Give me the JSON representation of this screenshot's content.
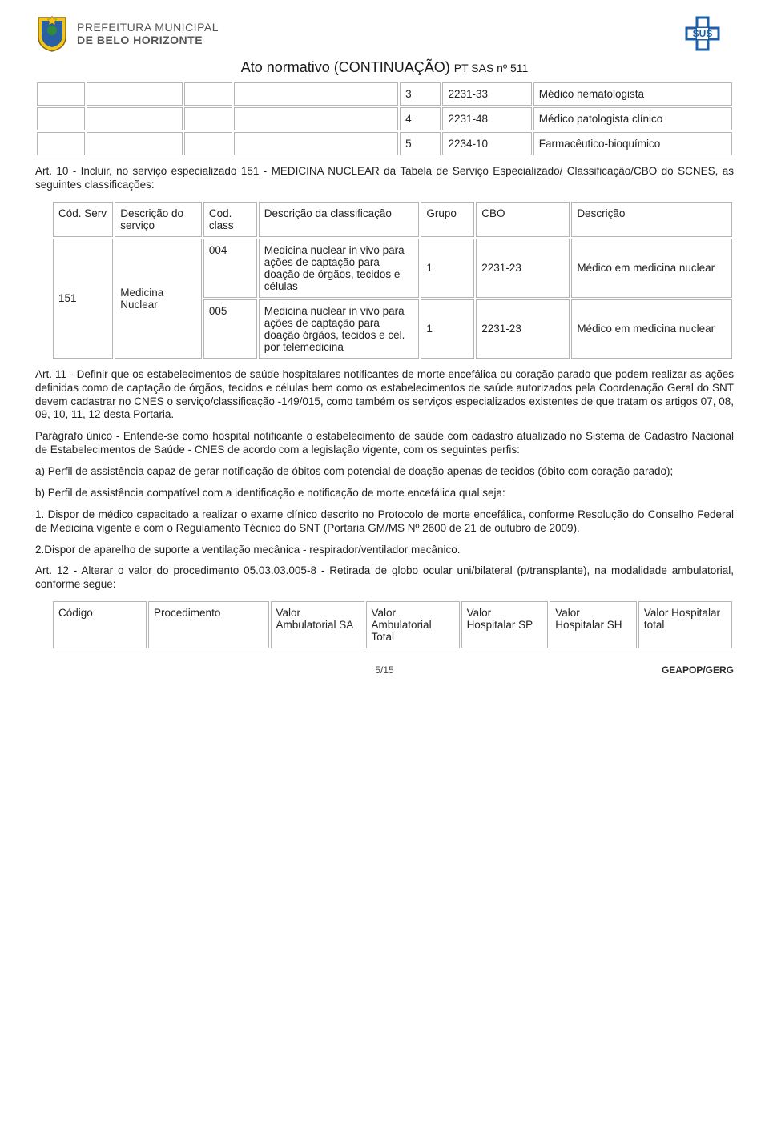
{
  "header": {
    "muni_line1": "PREFEITURA MUNICIPAL",
    "muni_line2": "DE BELO HORIZONTE",
    "sus_text": "SUS"
  },
  "title": {
    "main": "Ato normativo (CONTINUAÇÃO)",
    "suffix": "PT SAS nº 511"
  },
  "table1": {
    "rows": [
      {
        "col5": "3",
        "col6": "2231-33",
        "col7": "Médico hematologista"
      },
      {
        "col5": "4",
        "col6": "2231-48",
        "col7": "Médico patologista clínico"
      },
      {
        "col5": "5",
        "col6": "2234-10",
        "col7": "Farmacêutico-bioquímico"
      }
    ]
  },
  "art10": "Art. 10 - Incluir, no serviço especializado 151 - MEDICINA NUCLEAR da Tabela de Serviço Especializado/ Classificação/CBO do SCNES, as seguintes classificações:",
  "table2": {
    "headers": [
      "Cód. Serv",
      "Descrição do serviço",
      "Cod. class",
      "Descrição da classificação",
      "Grupo",
      "CBO",
      "Descrição"
    ],
    "merged": {
      "c1": "151",
      "c2": "Medicina Nuclear"
    },
    "rows": [
      {
        "c3": "004",
        "c4": "Medicina nuclear in vivo para ações de captação para doação de órgãos, tecidos e células",
        "c5": "1",
        "c6": "2231-23",
        "c7": "Médico em medicina nuclear"
      },
      {
        "c3": "005",
        "c4": "Medicina nuclear in vivo para ações de captação para doação órgãos, tecidos e cel. por telemedicina",
        "c5": "1",
        "c6": "2231-23",
        "c7": "Médico em medicina nuclear"
      }
    ]
  },
  "art11": "Art. 11 - Definir que os estabelecimentos de saúde hospitalares notificantes de morte encefálica ou coração parado que podem realizar as ações definidas como de captação de órgãos, tecidos e células bem como os estabelecimentos de saúde autorizados pela Coordenação Geral do SNT devem cadastrar no CNES o serviço/classificação -149/015, como também os serviços especializados existentes de que tratam os artigos 07, 08, 09, 10, 11, 12 desta Portaria.",
  "par_unico": "Parágrafo único - Entende-se como hospital notificante o estabelecimento de saúde com cadastro atualizado no Sistema de Cadastro Nacional de Estabelecimentos de Saúde - CNES de acordo com a legislação vigente, com os seguintes perfis:",
  "item_a": "a) Perfil de assistência capaz de gerar notificação de óbitos com potencial de doação apenas de tecidos (óbito com coração parado);",
  "item_b": "b) Perfil de assistência compatível com a identificação e notificação de morte encefálica qual seja:",
  "num1": "1. Dispor de médico capacitado a realizar o exame clínico descrito no Protocolo de morte encefálica, conforme Resolução do Conselho Federal de Medicina vigente e com o Regulamento Técnico do SNT (Portaria GM/MS Nº 2600 de 21 de outubro de 2009).",
  "num2": "2.Dispor de aparelho de suporte a ventilação mecânica - respirador/ventilador mecânico.",
  "art12": "Art. 12 - Alterar o valor do procedimento 05.03.03.005-8 - Retirada de globo ocular uni/bilateral (p/transplante), na modalidade ambulatorial, conforme segue:",
  "table3": {
    "headers": [
      "Código",
      "Procedimento",
      "Valor Ambulatorial SA",
      "Valor Ambulatorial Total",
      "Valor Hospitalar SP",
      "Valor Hospitalar SH",
      "Valor Hospitalar total"
    ]
  },
  "footer": {
    "page": "5/15",
    "right": "GEAPOP/GERG"
  },
  "colors": {
    "border": "#b5b5b5",
    "text": "#222222",
    "sus_blue": "#1d5fa8",
    "shield_yellow": "#f5c419",
    "shield_green": "#2f8a3c",
    "shield_blue": "#2a5fa3"
  }
}
